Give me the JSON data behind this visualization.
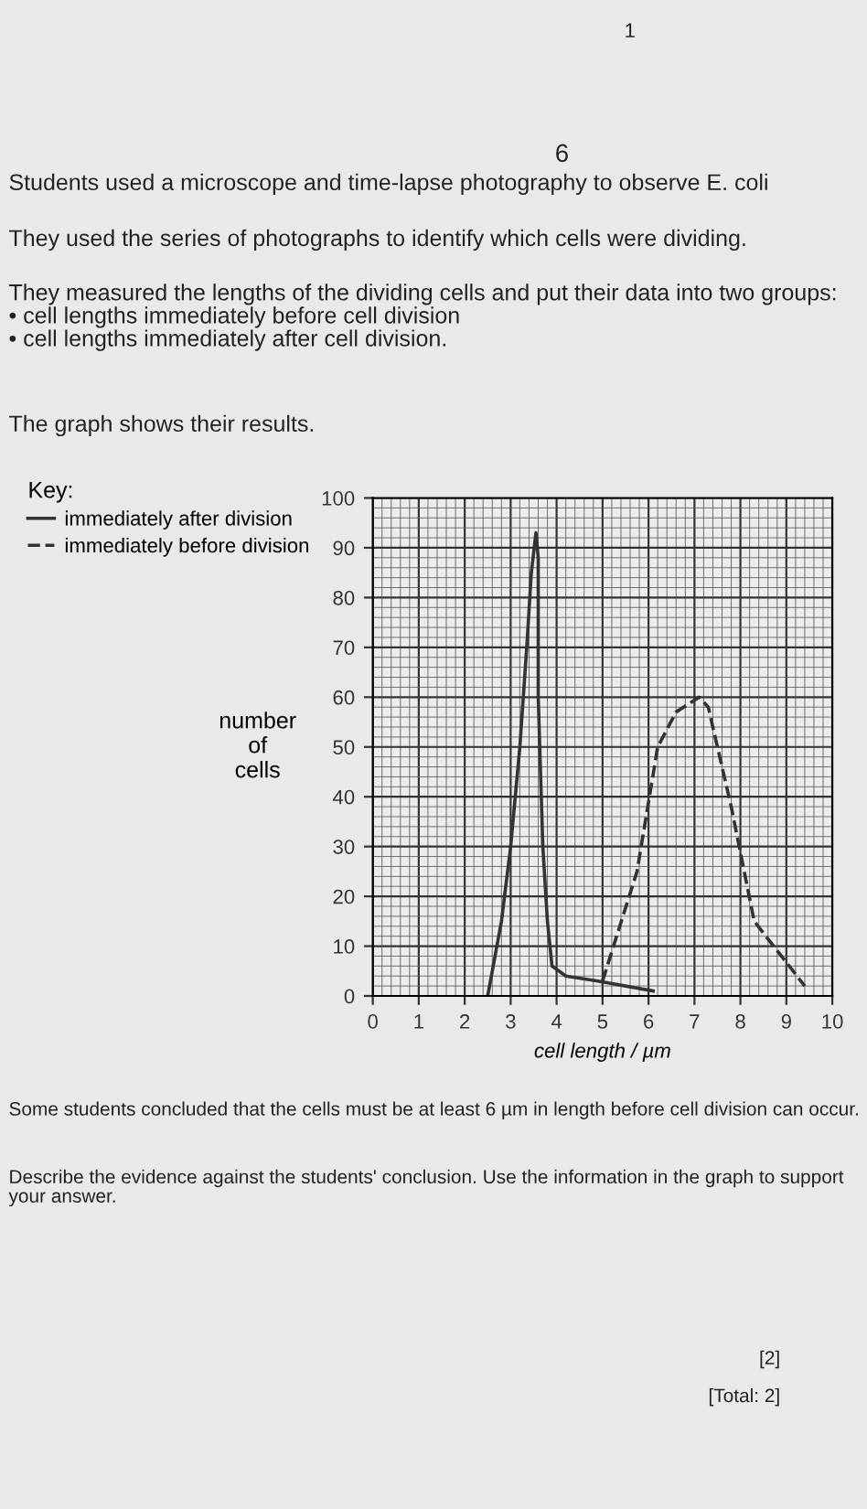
{
  "chart_data": {
    "type": "line",
    "xlabel": "cell length / µm",
    "ylabel": "number\nof\ncells",
    "legend_title": "Key:",
    "xlim": [
      0,
      10
    ],
    "ylim": [
      0,
      100
    ],
    "xticks": [
      0,
      1,
      2,
      3,
      4,
      5,
      6,
      7,
      8,
      9,
      10
    ],
    "yticks": [
      0,
      10,
      20,
      30,
      40,
      50,
      60,
      70,
      80,
      90,
      100
    ],
    "grid": true,
    "legend": "top left",
    "marker": "none",
    "series": [
      {
        "name": "immediately after division",
        "color": "#333333",
        "line_style": "solid",
        "x": [
          2.5,
          2.8,
          3.0,
          3.2,
          3.35,
          3.45,
          3.55,
          3.6,
          3.6,
          3.7,
          3.8,
          3.9,
          4.2,
          4.9,
          6.1
        ],
        "values": [
          0,
          15,
          30,
          50,
          70,
          85,
          93,
          88,
          60,
          30,
          15,
          6,
          4,
          3,
          1
        ]
      },
      {
        "name": "immediately before division",
        "color": "#333333",
        "line_style": "dashed",
        "x": [
          5.0,
          5.75,
          6.2,
          6.6,
          7.1,
          7.3,
          7.8,
          8.3,
          9.4
        ],
        "values": [
          3,
          25,
          50,
          57,
          60,
          58,
          38,
          15,
          2
        ]
      }
    ],
    "annotations": [
      "1",
      "6",
      "Students used a microscope and time-lapse photography to observe E. coli",
      "They used the series of photographs to identify which cells were dividing.",
      "They measured the lengths of the dividing cells and put their data into two groups:\n• cell lengths immediately before cell division\n• cell lengths immediately after cell division.",
      "The graph shows their results.",
      "Some students concluded that the cells must be at least 6 µm in length before cell division can occur.",
      "Describe the evidence against the students' conclusion. Use the information in the graph to support your answer.",
      "[2]",
      "[Total: 2]"
    ]
  }
}
